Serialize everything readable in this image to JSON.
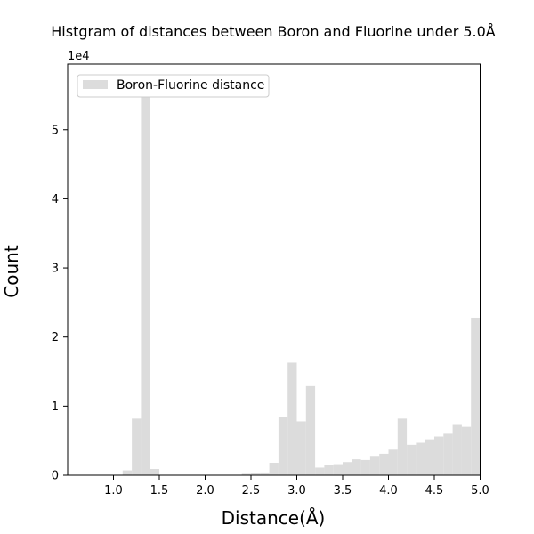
{
  "chart_data": {
    "type": "bar",
    "title": "Histgram of distances between Boron and Fluorine under 5.0Å",
    "xlabel": "Distance(Å)",
    "ylabel": "Count",
    "y_scale_label": "1e4",
    "xlim": [
      0.5,
      5.0
    ],
    "ylim": [
      0,
      59500
    ],
    "x_ticks": [
      1.0,
      1.5,
      2.0,
      2.5,
      3.0,
      3.5,
      4.0,
      4.5,
      5.0
    ],
    "x_tick_labels": [
      "1.0",
      "1.5",
      "2.0",
      "2.5",
      "3.0",
      "3.5",
      "4.0",
      "4.5",
      "5.0"
    ],
    "y_ticks": [
      0,
      10000,
      20000,
      30000,
      40000,
      50000
    ],
    "y_tick_labels": [
      "0",
      "1",
      "2",
      "3",
      "4",
      "5"
    ],
    "grid": false,
    "legend": {
      "position": "top-left",
      "entries": [
        "Boron-Fluorine distance"
      ]
    },
    "series": [
      {
        "name": "Boron-Fluorine distance",
        "color": "#dcdcdc",
        "bin_width": 0.1,
        "bins": [
          {
            "x0": 1.1,
            "x1": 1.2,
            "value": 700
          },
          {
            "x0": 1.2,
            "x1": 1.3,
            "value": 8200
          },
          {
            "x0": 1.3,
            "x1": 1.4,
            "value": 55000
          },
          {
            "x0": 1.4,
            "x1": 1.5,
            "value": 900
          },
          {
            "x0": 2.4,
            "x1": 2.5,
            "value": 200
          },
          {
            "x0": 2.5,
            "x1": 2.6,
            "value": 350
          },
          {
            "x0": 2.6,
            "x1": 2.7,
            "value": 400
          },
          {
            "x0": 2.7,
            "x1": 2.8,
            "value": 1800
          },
          {
            "x0": 2.8,
            "x1": 2.9,
            "value": 8400
          },
          {
            "x0": 2.9,
            "x1": 3.0,
            "value": 16300
          },
          {
            "x0": 3.0,
            "x1": 3.1,
            "value": 7800
          },
          {
            "x0": 3.1,
            "x1": 3.2,
            "value": 12900
          },
          {
            "x0": 3.2,
            "x1": 3.3,
            "value": 1100
          },
          {
            "x0": 3.3,
            "x1": 3.4,
            "value": 1500
          },
          {
            "x0": 3.4,
            "x1": 3.5,
            "value": 1600
          },
          {
            "x0": 3.5,
            "x1": 3.6,
            "value": 1900
          },
          {
            "x0": 3.6,
            "x1": 3.7,
            "value": 2300
          },
          {
            "x0": 3.7,
            "x1": 3.8,
            "value": 2200
          },
          {
            "x0": 3.8,
            "x1": 3.9,
            "value": 2800
          },
          {
            "x0": 3.9,
            "x1": 4.0,
            "value": 3100
          },
          {
            "x0": 4.0,
            "x1": 4.1,
            "value": 3700
          },
          {
            "x0": 4.1,
            "x1": 4.2,
            "value": 8200
          },
          {
            "x0": 4.2,
            "x1": 4.3,
            "value": 4400
          },
          {
            "x0": 4.3,
            "x1": 4.4,
            "value": 4700
          },
          {
            "x0": 4.4,
            "x1": 4.5,
            "value": 5200
          },
          {
            "x0": 4.5,
            "x1": 4.6,
            "value": 5600
          },
          {
            "x0": 4.6,
            "x1": 4.7,
            "value": 6000
          },
          {
            "x0": 4.7,
            "x1": 4.8,
            "value": 7400
          },
          {
            "x0": 4.8,
            "x1": 4.9,
            "value": 7000
          },
          {
            "x0": 4.9,
            "x1": 5.0,
            "value": 22800
          }
        ]
      }
    ]
  }
}
